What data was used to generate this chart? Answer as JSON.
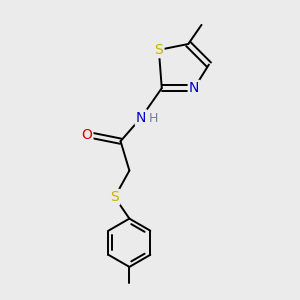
{
  "background_color": "#ebebeb",
  "bond_color": "#000000",
  "atom_colors": {
    "S": "#c8b400",
    "N": "#0000cc",
    "O": "#dd0000",
    "H": "#708090",
    "C": "#000000"
  },
  "figsize": [
    3.0,
    3.0
  ],
  "dpi": 100,
  "lw": 1.4
}
